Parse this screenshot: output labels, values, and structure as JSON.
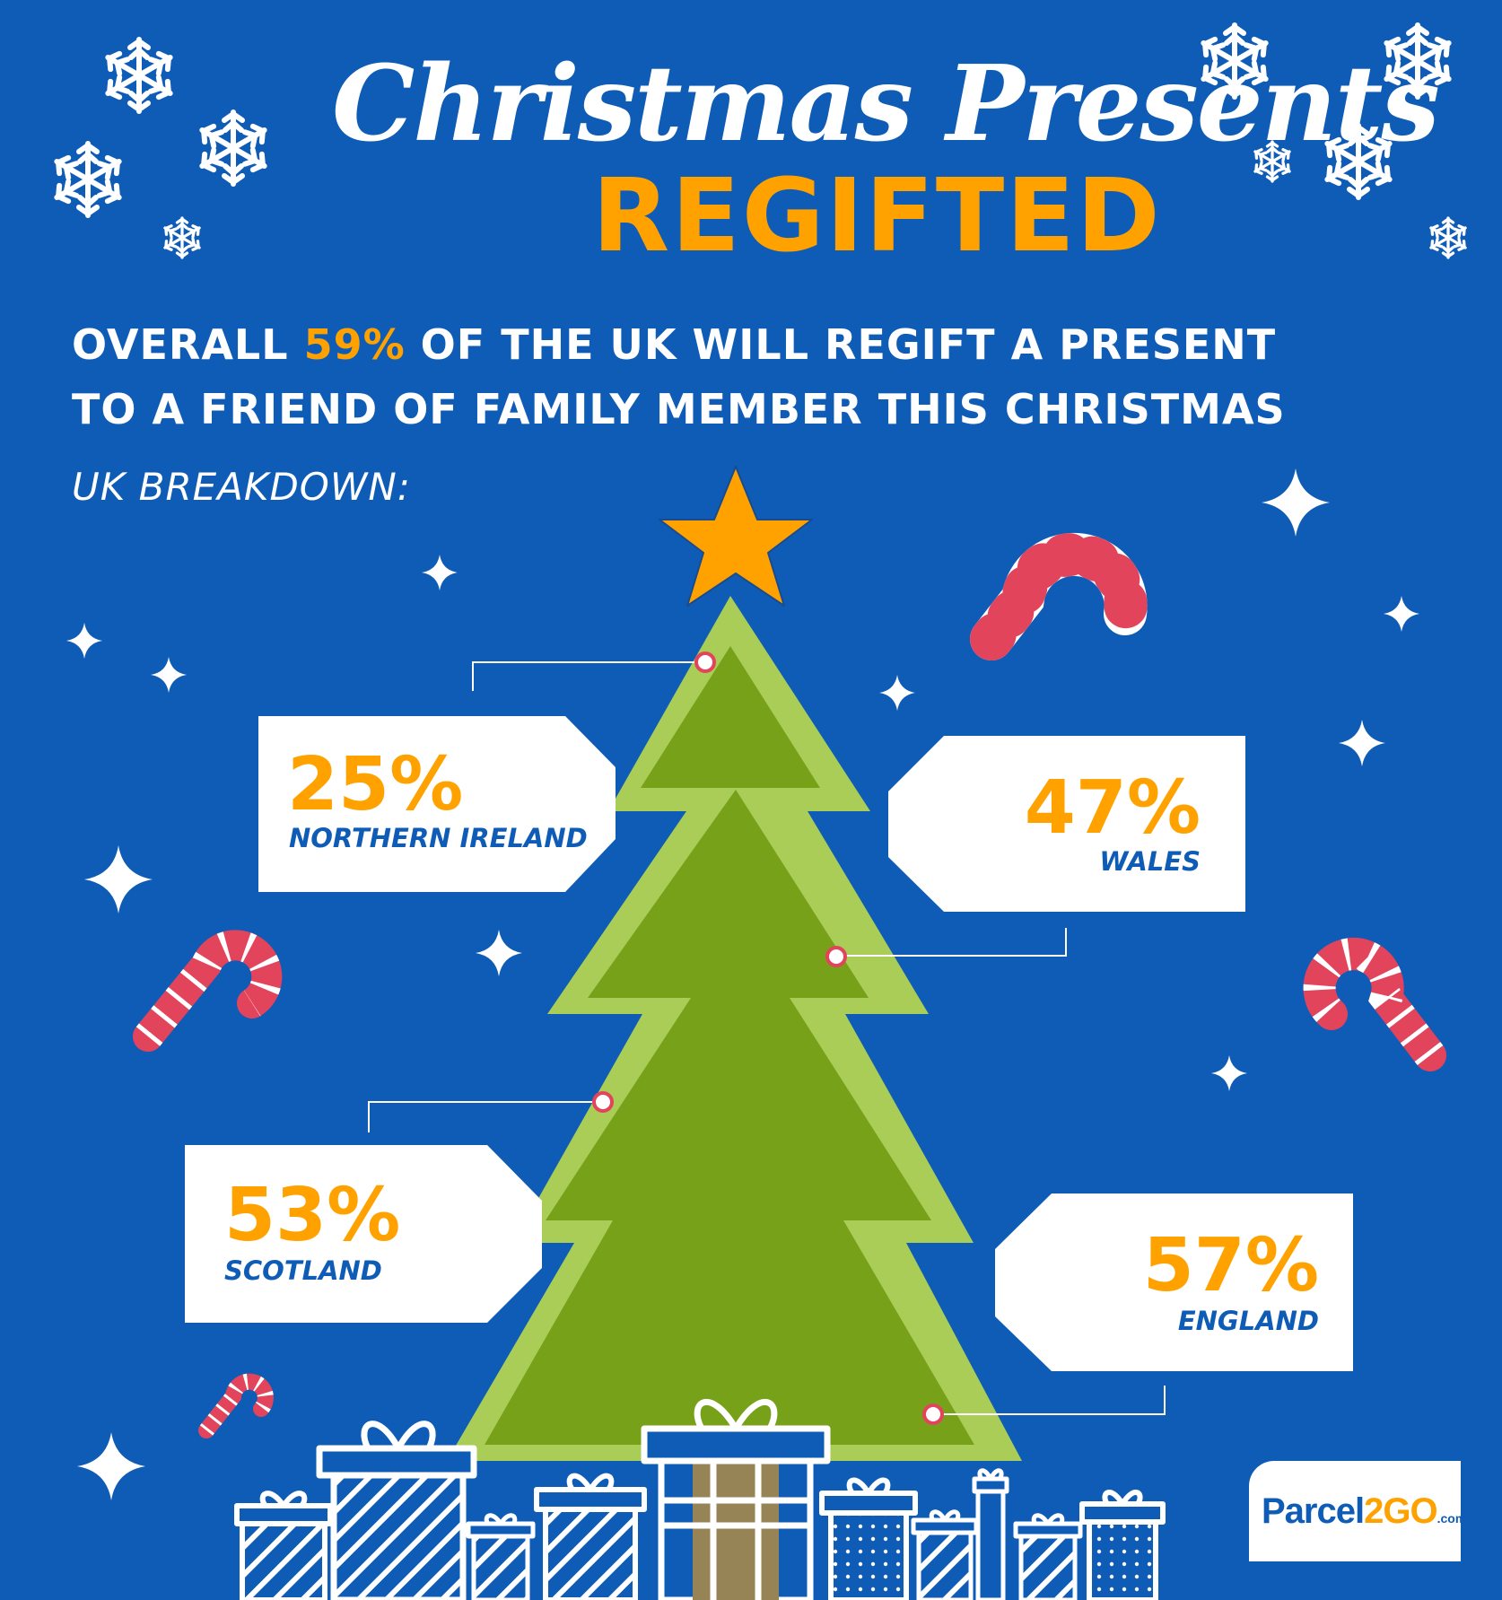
{
  "title": {
    "script_line": "Christmas Presents",
    "main_line": "REGIFTED"
  },
  "headline": {
    "line1_prefix": "OVERALL ",
    "line1_highlight": "59%",
    "line1_suffix": " OF THE UK WILL REGIFT A PRESENT",
    "line2": "TO A FRIEND OF FAMILY MEMBER THIS CHRISTMAS"
  },
  "breakdown_label": "UK BREAKDOWN:",
  "tags": [
    {
      "percent": "25%",
      "region": "NORTHERN IRELAND"
    },
    {
      "percent": "47%",
      "region": "WALES"
    },
    {
      "percent": "53%",
      "region": "SCOTLAND"
    },
    {
      "percent": "57%",
      "region": "ENGLAND"
    }
  ],
  "logo": {
    "part1": "Parcel",
    "part2": "2GO",
    "domain": ".com"
  },
  "colors": {
    "background": "#0F5CB7",
    "accent": "#FFA200",
    "tree_outer": "#A9CD56",
    "tree_inner": "#78A11A",
    "trunk": "#968457",
    "candy_red": "#E2445C",
    "white": "#FFFFFF"
  },
  "icons": [
    "snowflake-icon",
    "sparkle-icon",
    "star-icon",
    "candy-cane-icon",
    "gift-box-icon",
    "christmas-tree-icon"
  ]
}
